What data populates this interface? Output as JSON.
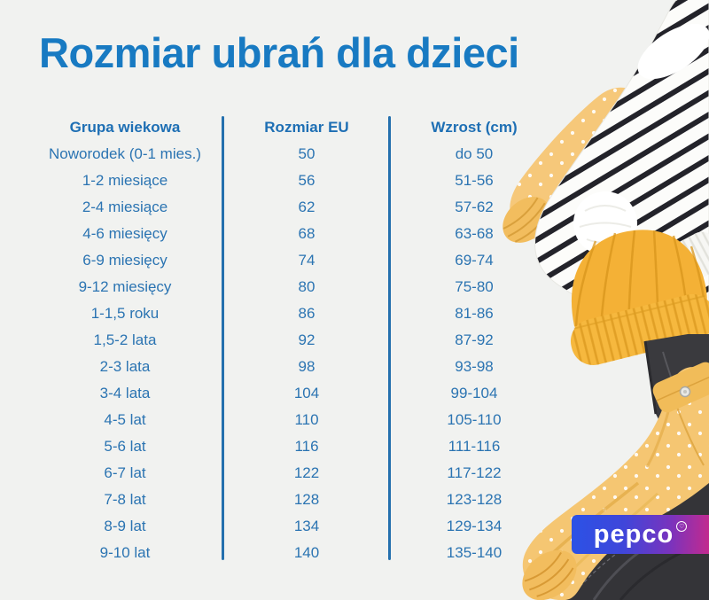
{
  "page": {
    "background_color": "#f1f2f0",
    "title_color": "#187ac2"
  },
  "chart_data": {
    "type": "table",
    "title": "Rozmiar ubrań dla dzieci",
    "columns": [
      "Grupa wiekowa",
      "Rozmiar EU",
      "Wzrost (cm)"
    ],
    "rows": [
      [
        "Noworodek (0-1 mies.)",
        "50",
        "do 50"
      ],
      [
        "1-2 miesiące",
        "56",
        "51-56"
      ],
      [
        "2-4 miesiące",
        "62",
        "57-62"
      ],
      [
        "4-6 miesięcy",
        "68",
        "63-68"
      ],
      [
        "6-9 miesięcy",
        "74",
        "69-74"
      ],
      [
        "9-12 miesięcy",
        "80",
        "75-80"
      ],
      [
        "1-1,5 roku",
        "86",
        "81-86"
      ],
      [
        "1,5-2 lata",
        "92",
        "87-92"
      ],
      [
        "2-3 lata",
        "98",
        "93-98"
      ],
      [
        "3-4 lata",
        "104",
        "99-104"
      ],
      [
        "4-5 lat",
        "110",
        "105-110"
      ],
      [
        "5-6 lat",
        "116",
        "111-116"
      ],
      [
        "6-7 lat",
        "122",
        "117-122"
      ],
      [
        "7-8 lat",
        "128",
        "123-128"
      ],
      [
        "8-9 lat",
        "134",
        "129-134"
      ],
      [
        "9-10 lat",
        "140",
        "135-140"
      ]
    ],
    "table_text_color": "#2b74b2",
    "header_color": "#1e6fb4",
    "divider_color": "#2470ae",
    "grid": "two vertical divider rules between columns, no horizontal rules"
  },
  "brand": {
    "logo_text": "pepco",
    "logo_mark_icon": "heart-in-circle-icon",
    "logo_gradient_left": "#2b52e6",
    "logo_gradient_right": "#c32a8e"
  },
  "illustration": {
    "top_right": "black-and-white striped sweater, yellow polka-dot sleeve, yellow ribbed beanie with white pom-pom",
    "bottom_right": "yellow polka-dot jacket with snap collar, dark grey jeans"
  }
}
